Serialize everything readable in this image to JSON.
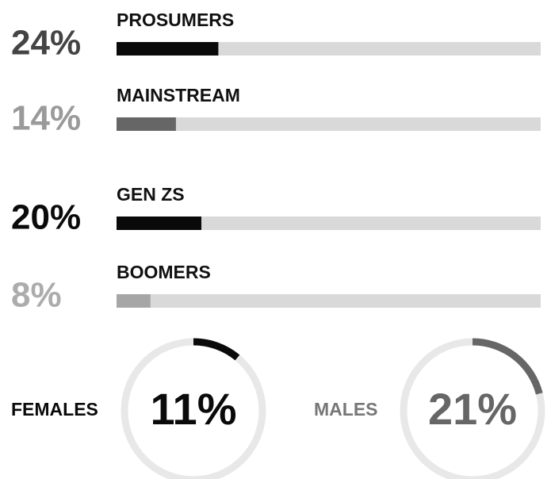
{
  "chart_data": [
    {
      "type": "bar",
      "categories": [
        "PROSUMERS",
        "MAINSTREAM",
        "GEN ZS",
        "BOOMERS"
      ],
      "values": [
        24,
        14,
        20,
        8
      ],
      "value_labels": [
        "24%",
        "14%",
        "20%",
        "8%"
      ],
      "colors": [
        "#0a0a0a",
        "#666666",
        "#0a0a0a",
        "#a6a6a6"
      ],
      "label_colors": [
        "#444444",
        "#9a9a9a",
        "#0a0a0a",
        "#acacac"
      ],
      "track_color": "#d9d9d9",
      "xlim": [
        0,
        100
      ]
    },
    {
      "type": "gauge",
      "label": "FEMALES",
      "value": 11,
      "value_label": "11%",
      "color": "#0a0a0a",
      "label_color": "#0a0a0a",
      "track_color": "#e8e8e8",
      "xlim": [
        0,
        100
      ]
    },
    {
      "type": "gauge",
      "label": "MALES",
      "value": 21,
      "value_label": "21%",
      "color": "#666666",
      "label_color": "#777777",
      "track_color": "#e8e8e8",
      "xlim": [
        0,
        100
      ]
    }
  ]
}
